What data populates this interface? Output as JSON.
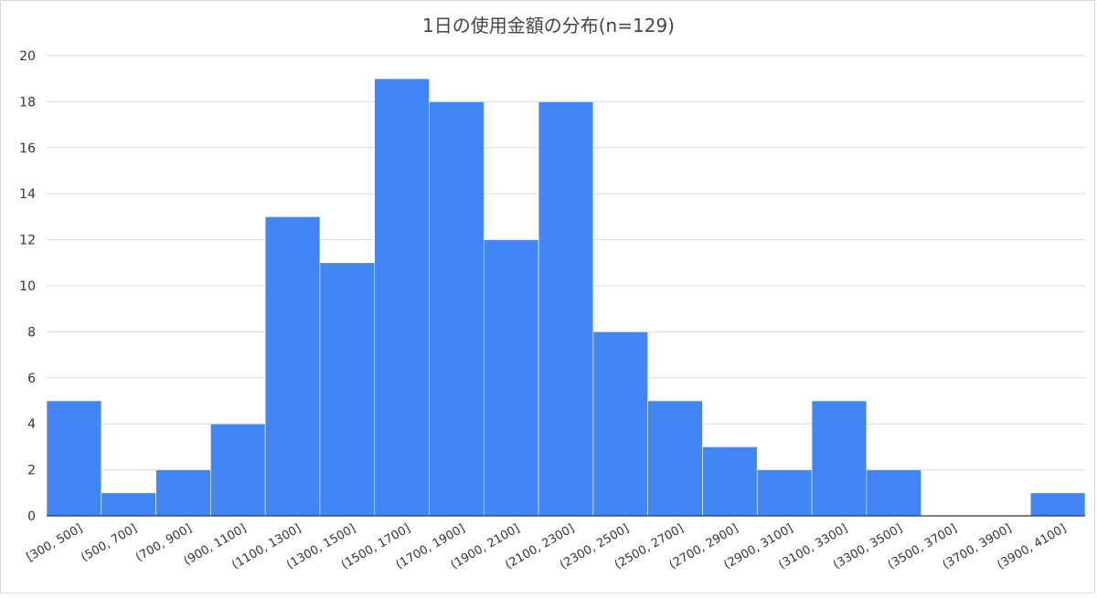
{
  "chart_data": {
    "type": "bar",
    "title": "1日の使用金額の分布(n=129)",
    "xlabel": "",
    "ylabel": "",
    "categories": [
      "[300, 500]",
      "(500, 700]",
      "(700, 900]",
      "(900, 1100]",
      "(1100, 1300]",
      "(1300, 1500]",
      "(1500, 1700]",
      "(1700, 1900]",
      "(1900, 2100]",
      "(2100, 2300]",
      "(2300, 2500]",
      "(2500, 2700]",
      "(2700, 2900]",
      "(2900, 3100]",
      "(3100, 3300]",
      "(3300, 3500]",
      "(3500, 3700]",
      "(3700, 3900]",
      "(3900, 4100]"
    ],
    "values": [
      5,
      1,
      2,
      4,
      13,
      11,
      19,
      18,
      12,
      18,
      8,
      5,
      3,
      2,
      5,
      2,
      0,
      0,
      1
    ],
    "ylim": [
      0,
      20
    ],
    "yticks": [
      0,
      2,
      4,
      6,
      8,
      10,
      12,
      14,
      16,
      18,
      20
    ],
    "grid": true,
    "legend": "none",
    "bar_color": "#4285f4",
    "grid_color": "#d9d9d9",
    "text_color": "#333333"
  }
}
